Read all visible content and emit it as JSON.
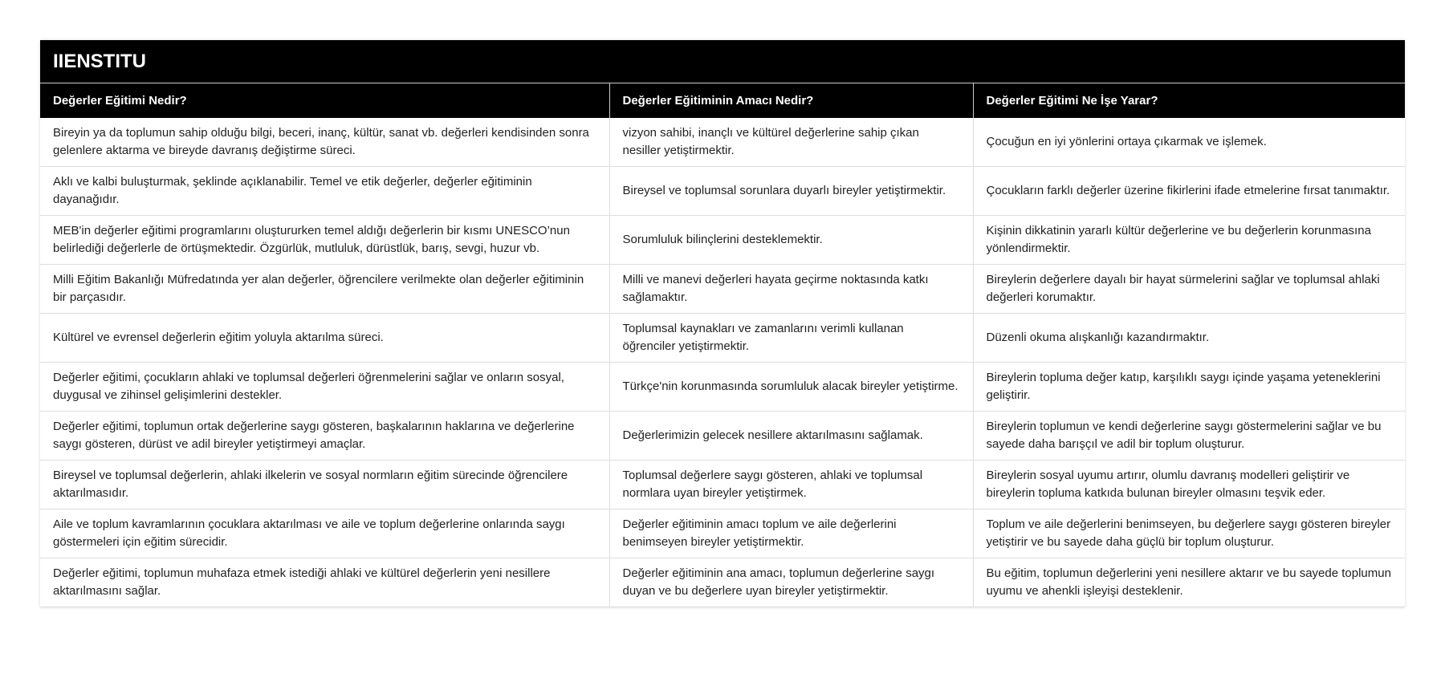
{
  "title": "IIENSTITU",
  "headers": [
    "Değerler Eğitimi Nedir?",
    "Değerler Eğitiminin Amacı Nedir?",
    "Değerler Eğitimi Ne İşe Yarar?"
  ],
  "rows": [
    [
      "Bireyin ya da toplumun sahip olduğu bilgi, beceri, inanç, kültür, sanat vb. değerleri kendisinden sonra gelenlere aktarma ve bireyde davranış değiştirme süreci.",
      "vizyon sahibi, inançlı ve kültürel değerlerine sahip çıkan nesiller yetiştirmektir.",
      "Çocuğun en iyi yönlerini ortaya çıkarmak ve işlemek."
    ],
    [
      "Aklı ve kalbi buluşturmak, şeklinde açıklanabilir. Temel ve etik değerler, değerler eğitiminin dayanağıdır.",
      "Bireysel ve toplumsal sorunlara duyarlı bireyler yetiştirmektir.",
      "Çocukların farklı değerler üzerine fikirlerini ifade etmelerine fırsat tanımaktır."
    ],
    [
      "MEB'in değerler eğitimi programlarını oluştururken temel aldığı değerlerin bir kısmı UNESCO’nun belirlediği değerlerle de örtüşmektedir. Özgürlük, mutluluk, dürüstlük, barış, sevgi, huzur vb.",
      "Sorumluluk bilinçlerini desteklemektir.",
      "Kişinin dikkatinin yararlı kültür değerlerine ve bu değerlerin korunmasına yönlendirmektir."
    ],
    [
      "Milli Eğitim Bakanlığı Müfredatında yer alan değerler, öğrencilere verilmekte olan değerler eğitiminin bir parçasıdır.",
      "Milli ve manevi değerleri hayata geçirme noktasında katkı sağlamaktır.",
      "Bireylerin değerlere dayalı bir hayat sürmelerini sağlar ve toplumsal ahlaki değerleri korumaktır."
    ],
    [
      "Kültürel ve evrensel değerlerin eğitim yoluyla aktarılma süreci.",
      "Toplumsal kaynakları ve zamanlarını verimli kullanan öğrenciler yetiştirmektir.",
      "Düzenli okuma alışkanlığı kazandırmaktır."
    ],
    [
      "Değerler eğitimi, çocukların ahlaki ve toplumsal değerleri öğrenmelerini sağlar ve onların sosyal, duygusal ve zihinsel gelişimlerini destekler.",
      "Türkçe'nin korunmasında sorumluluk alacak bireyler yetiştirme.",
      "Bireylerin topluma değer katıp, karşılıklı saygı içinde yaşama yeteneklerini geliştirir."
    ],
    [
      "Değerler eğitimi, toplumun ortak değerlerine saygı gösteren, başkalarının haklarına ve değerlerine saygı gösteren, dürüst ve adil bireyler yetiştirmeyi amaçlar.",
      "Değerlerimizin gelecek nesillere aktarılmasını sağlamak.",
      "Bireylerin toplumun ve kendi değerlerine saygı göstermelerini sağlar ve bu sayede daha barışçıl ve adil bir toplum oluşturur."
    ],
    [
      "Bireysel ve toplumsal değerlerin, ahlaki ilkelerin ve sosyal normların eğitim sürecinde öğrencilere aktarılmasıdır.",
      "Toplumsal değerlere saygı gösteren, ahlaki ve toplumsal normlara uyan bireyler yetiştirmek.",
      "Bireylerin sosyal uyumu artırır, olumlu davranış modelleri geliştirir ve bireylerin topluma katkıda bulunan bireyler olmasını teşvik eder."
    ],
    [
      "Aile ve toplum kavramlarının çocuklara aktarılması ve aile ve toplum değerlerine onlarında saygı göstermeleri için eğitim sürecidir.",
      "Değerler eğitiminin amacı toplum ve aile değerlerini benimseyen bireyler yetiştirmektir.",
      "Toplum ve aile değerlerini benimseyen, bu değerlere saygı gösteren bireyler yetiştirir ve bu sayede daha güçlü bir toplum oluşturur."
    ],
    [
      "Değerler eğitimi, toplumun muhafaza etmek istediği ahlaki ve kültürel değerlerin yeni nesillere aktarılmasını sağlar.",
      "Değerler eğitiminin ana amacı, toplumun değerlerine saygı duyan ve bu değerlere uyan bireyler yetiştirmektir.",
      "Bu eğitim, toplumun değerlerini yeni nesillere aktarır ve bu sayede toplumun uyumu ve ahenkli işleyişi desteklenir."
    ]
  ]
}
